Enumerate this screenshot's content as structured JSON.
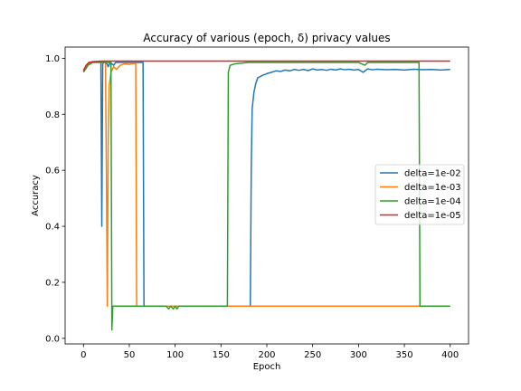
{
  "chart_data": {
    "type": "line",
    "title": "Accuracy of various (epoch, δ) privacy values",
    "xlabel": "Epoch",
    "ylabel": "Accuracy",
    "xlim": [
      -20,
      420
    ],
    "ylim": [
      -0.02,
      1.04
    ],
    "xticks": [
      0,
      50,
      100,
      150,
      200,
      250,
      300,
      350,
      400
    ],
    "yticks": [
      0.0,
      0.2,
      0.4,
      0.6,
      0.8,
      1.0
    ],
    "grid": false,
    "legend_position": "right",
    "series": [
      {
        "name": "delta=1e-02",
        "color": "#1f77b4",
        "points": [
          [
            0,
            0.955
          ],
          [
            3,
            0.975
          ],
          [
            6,
            0.985
          ],
          [
            10,
            0.987
          ],
          [
            15,
            0.988
          ],
          [
            19,
            0.988
          ],
          [
            20,
            0.4
          ],
          [
            21,
            0.98
          ],
          [
            22,
            0.985
          ],
          [
            25,
            0.985
          ],
          [
            27,
            0.97
          ],
          [
            29,
            0.985
          ],
          [
            33,
            0.975
          ],
          [
            35,
            0.985
          ],
          [
            40,
            0.985
          ],
          [
            45,
            0.985
          ],
          [
            50,
            0.985
          ],
          [
            55,
            0.985
          ],
          [
            60,
            0.985
          ],
          [
            65,
            0.985
          ],
          [
            66,
            0.115
          ],
          [
            100,
            0.115
          ],
          [
            150,
            0.115
          ],
          [
            182,
            0.115
          ],
          [
            183,
            0.6
          ],
          [
            184,
            0.82
          ],
          [
            186,
            0.88
          ],
          [
            188,
            0.91
          ],
          [
            190,
            0.93
          ],
          [
            193,
            0.935
          ],
          [
            196,
            0.94
          ],
          [
            200,
            0.945
          ],
          [
            205,
            0.95
          ],
          [
            210,
            0.955
          ],
          [
            215,
            0.953
          ],
          [
            220,
            0.958
          ],
          [
            225,
            0.955
          ],
          [
            230,
            0.96
          ],
          [
            235,
            0.957
          ],
          [
            240,
            0.96
          ],
          [
            245,
            0.956
          ],
          [
            250,
            0.962
          ],
          [
            255,
            0.958
          ],
          [
            260,
            0.96
          ],
          [
            265,
            0.957
          ],
          [
            270,
            0.961
          ],
          [
            275,
            0.958
          ],
          [
            280,
            0.962
          ],
          [
            285,
            0.959
          ],
          [
            290,
            0.961
          ],
          [
            295,
            0.958
          ],
          [
            300,
            0.96
          ],
          [
            305,
            0.95
          ],
          [
            310,
            0.962
          ],
          [
            315,
            0.959
          ],
          [
            320,
            0.961
          ],
          [
            330,
            0.959
          ],
          [
            340,
            0.96
          ],
          [
            350,
            0.958
          ],
          [
            360,
            0.961
          ],
          [
            370,
            0.959
          ],
          [
            380,
            0.96
          ],
          [
            390,
            0.958
          ],
          [
            400,
            0.96
          ]
        ]
      },
      {
        "name": "delta=1e-03",
        "color": "#ff7f0e",
        "points": [
          [
            0,
            0.96
          ],
          [
            5,
            0.98
          ],
          [
            10,
            0.985
          ],
          [
            15,
            0.986
          ],
          [
            20,
            0.986
          ],
          [
            24,
            0.985
          ],
          [
            25,
            0.6
          ],
          [
            26,
            0.115
          ],
          [
            27,
            0.7
          ],
          [
            28,
            0.9
          ],
          [
            30,
            0.95
          ],
          [
            33,
            0.97
          ],
          [
            36,
            0.96
          ],
          [
            40,
            0.975
          ],
          [
            45,
            0.98
          ],
          [
            50,
            0.978
          ],
          [
            55,
            0.982
          ],
          [
            57,
            0.98
          ],
          [
            58,
            0.115
          ],
          [
            100,
            0.115
          ],
          [
            150,
            0.115
          ],
          [
            200,
            0.115
          ],
          [
            250,
            0.115
          ],
          [
            300,
            0.115
          ],
          [
            350,
            0.115
          ],
          [
            400,
            0.115
          ]
        ]
      },
      {
        "name": "delta=1e-04",
        "color": "#2ca02c",
        "points": [
          [
            0,
            0.95
          ],
          [
            5,
            0.975
          ],
          [
            10,
            0.985
          ],
          [
            15,
            0.985
          ],
          [
            20,
            0.985
          ],
          [
            25,
            0.985
          ],
          [
            30,
            0.985
          ],
          [
            31,
            0.03
          ],
          [
            32,
            0.115
          ],
          [
            50,
            0.115
          ],
          [
            90,
            0.115
          ],
          [
            93,
            0.105
          ],
          [
            95,
            0.115
          ],
          [
            98,
            0.105
          ],
          [
            100,
            0.115
          ],
          [
            102,
            0.105
          ],
          [
            104,
            0.115
          ],
          [
            150,
            0.115
          ],
          [
            157,
            0.115
          ],
          [
            158,
            0.95
          ],
          [
            160,
            0.975
          ],
          [
            165,
            0.98
          ],
          [
            170,
            0.982
          ],
          [
            180,
            0.985
          ],
          [
            200,
            0.985
          ],
          [
            250,
            0.985
          ],
          [
            300,
            0.985
          ],
          [
            307,
            0.975
          ],
          [
            310,
            0.985
          ],
          [
            330,
            0.985
          ],
          [
            350,
            0.985
          ],
          [
            366,
            0.985
          ],
          [
            367,
            0.115
          ],
          [
            380,
            0.115
          ],
          [
            400,
            0.115
          ]
        ]
      },
      {
        "name": "delta=1e-05",
        "color": "#d62728",
        "points": [
          [
            0,
            0.955
          ],
          [
            3,
            0.975
          ],
          [
            6,
            0.985
          ],
          [
            10,
            0.988
          ],
          [
            20,
            0.99
          ],
          [
            50,
            0.99
          ],
          [
            100,
            0.99
          ],
          [
            150,
            0.99
          ],
          [
            200,
            0.99
          ],
          [
            250,
            0.99
          ],
          [
            300,
            0.99
          ],
          [
            350,
            0.99
          ],
          [
            400,
            0.99
          ]
        ]
      }
    ]
  }
}
